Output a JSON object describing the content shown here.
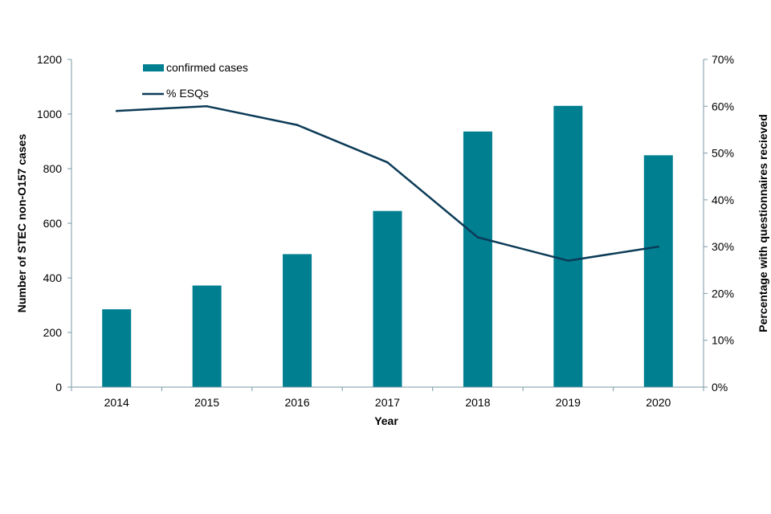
{
  "chart_data": {
    "type": "bar",
    "title": "",
    "categories": [
      "2014",
      "2015",
      "2016",
      "2017",
      "2018",
      "2019",
      "2020"
    ],
    "series": [
      {
        "name": "confirmed cases",
        "type": "bar",
        "axis": "left",
        "values": [
          285,
          372,
          487,
          645,
          936,
          1030,
          849
        ]
      },
      {
        "name": "% ESQs",
        "type": "line",
        "axis": "right",
        "values": [
          59,
          60,
          56,
          48,
          32,
          27,
          30
        ]
      }
    ],
    "xlabel": "Year",
    "ylabel": "Number of STEC non-O157 cases",
    "y2label": "Percentage with questionnaires recieved",
    "ylim": [
      0,
      1200
    ],
    "yticks": [
      "0",
      "200",
      "400",
      "600",
      "800",
      "1000",
      "1200"
    ],
    "y2lim": [
      0,
      70
    ],
    "y2ticks": [
      "0%",
      "10%",
      "20%",
      "30%",
      "40%",
      "50%",
      "60%",
      "70%"
    ],
    "grid": false,
    "legend": "top-left",
    "colors": {
      "bar": "#007f91",
      "line": "#0c3b57",
      "axis": "#7a9aa6"
    }
  }
}
